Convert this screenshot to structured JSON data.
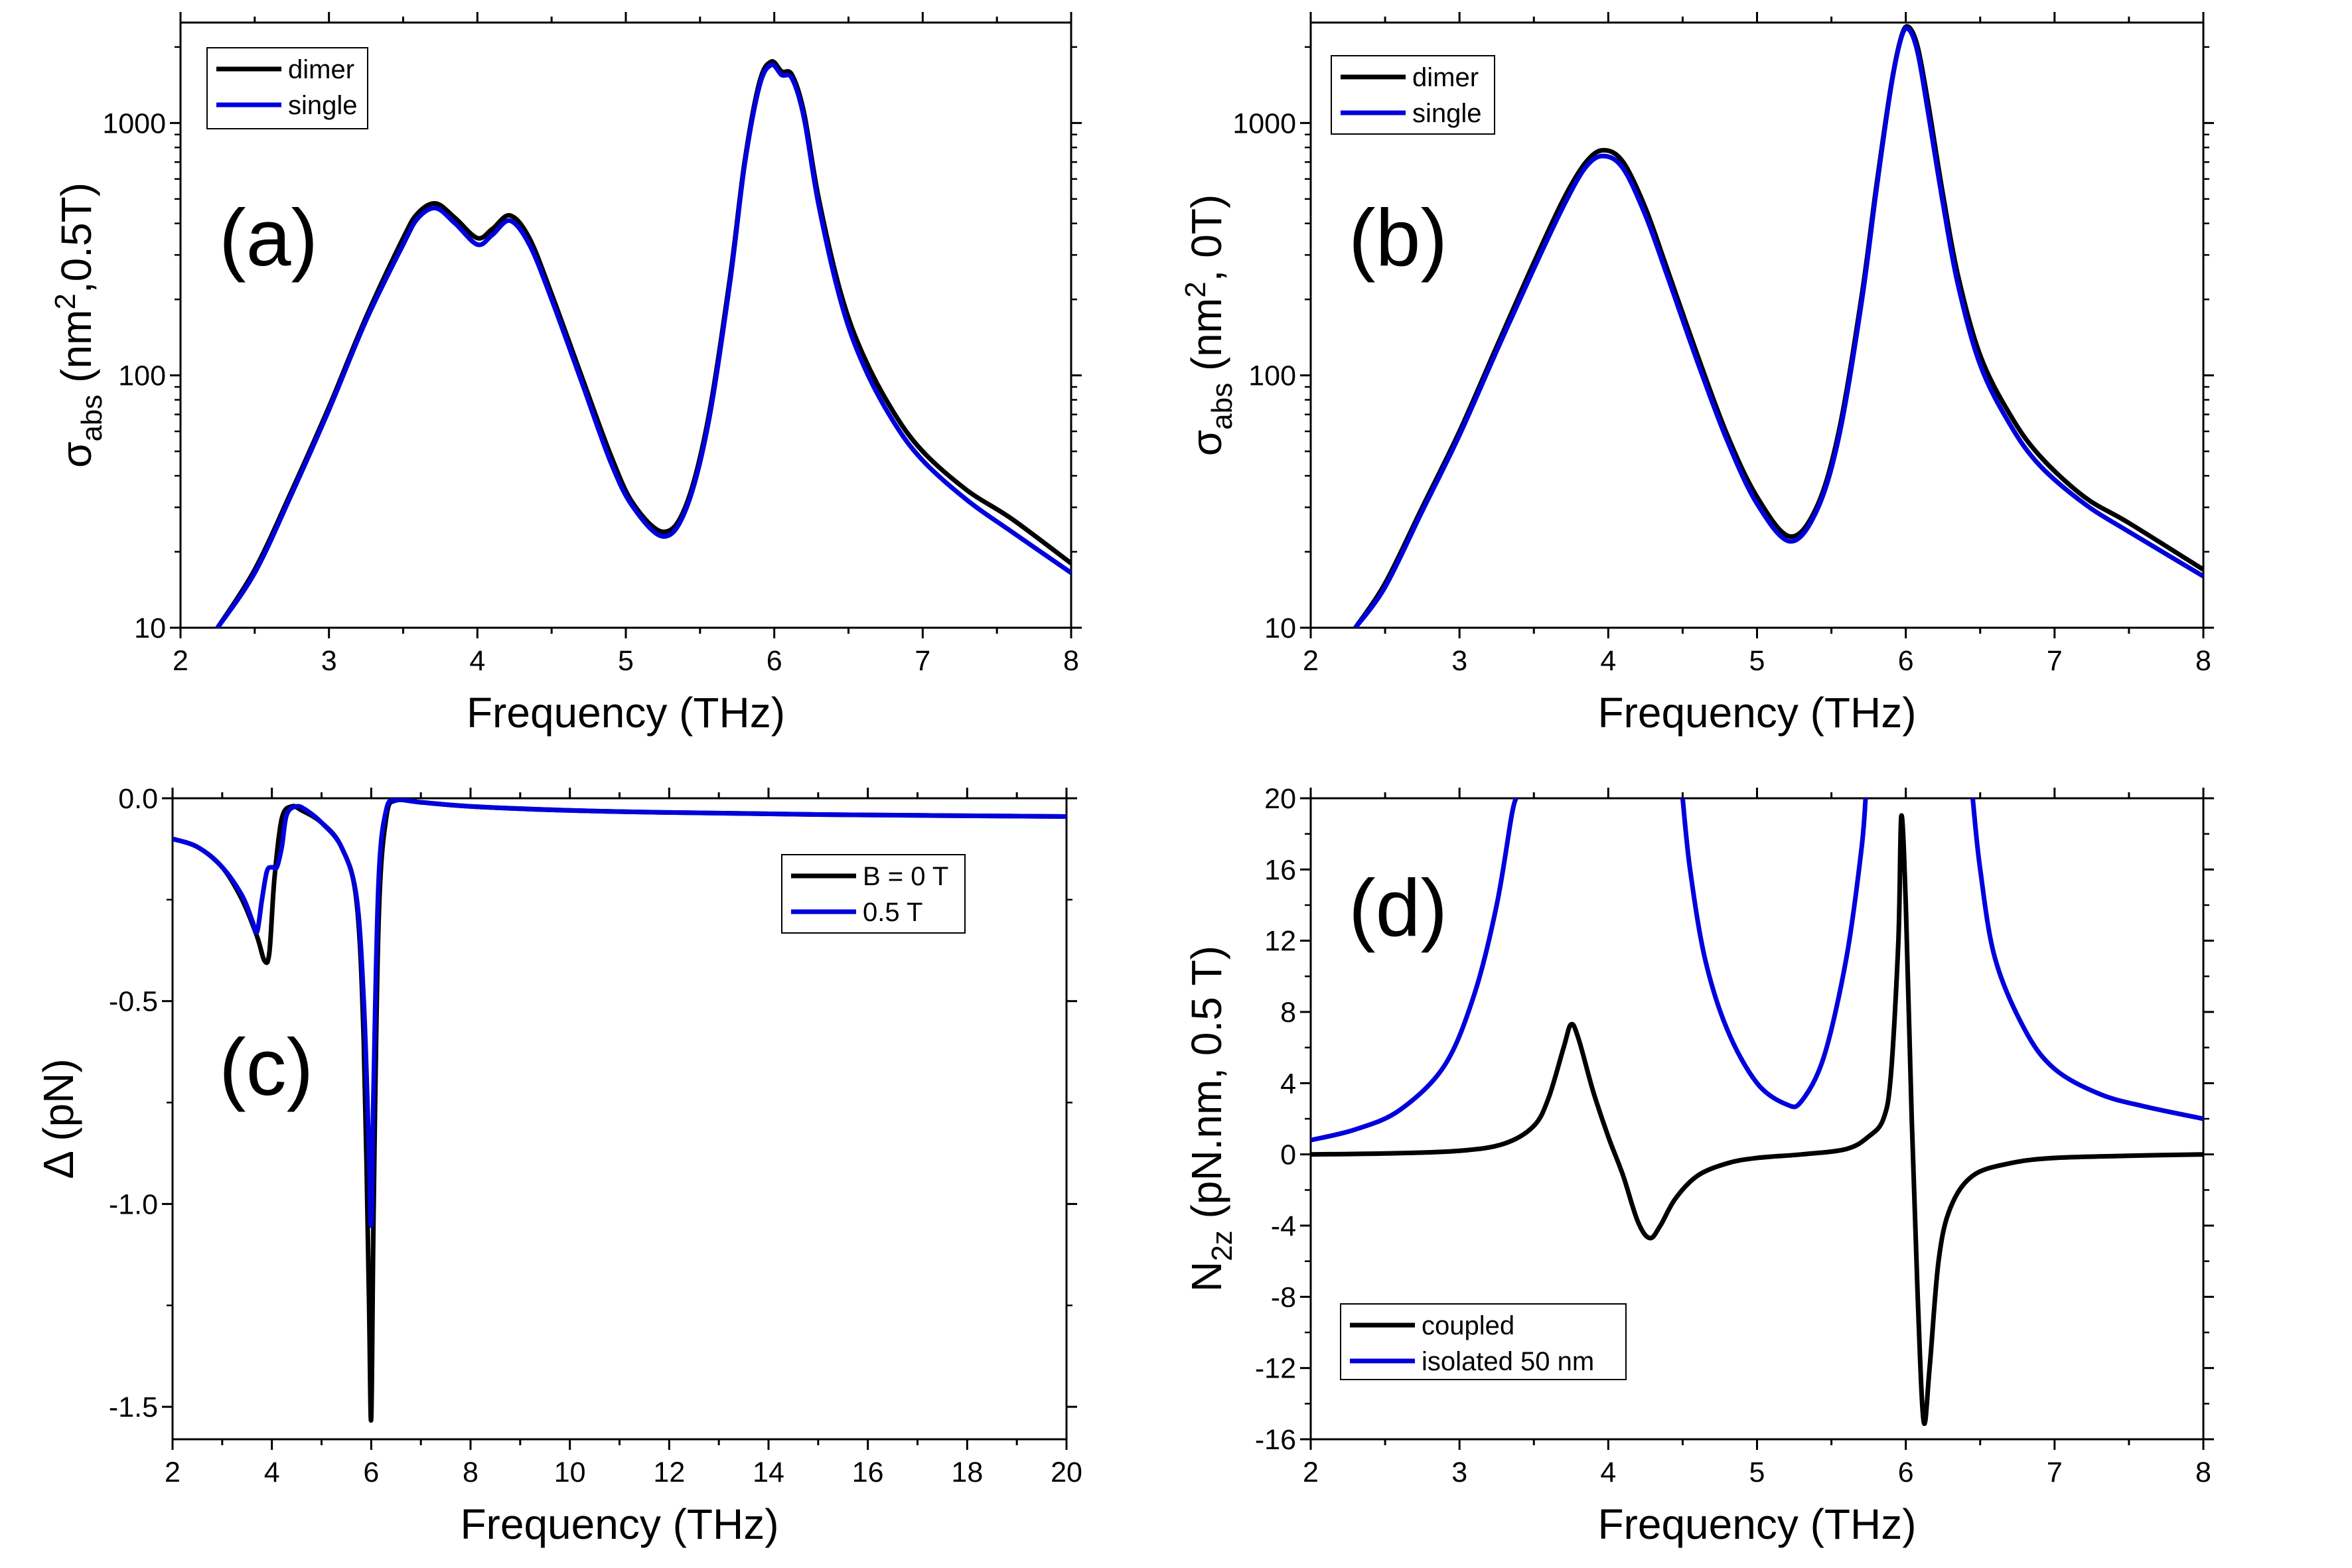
{
  "chart_data": [
    {
      "panel": "(a)",
      "type": "line",
      "xlabel": "Frequency (THz)",
      "ylabel": {
        "base": "σ",
        "sub": "abs",
        "rest_before": " (nm",
        "sup": "2",
        "rest_after": ",0.5T)"
      },
      "xlim": [
        2,
        8
      ],
      "ylim": [
        10,
        2500
      ],
      "yscale": "log",
      "xticks": [
        2,
        3,
        4,
        5,
        6,
        7,
        8
      ],
      "yticks": [
        10,
        100,
        1000
      ],
      "ytick_labels": [
        "10",
        "100",
        "1000"
      ],
      "legend": {
        "position": "top-left"
      },
      "series": [
        {
          "name": "dimer",
          "color": "#000000",
          "x": [
            2.25,
            2.5,
            2.75,
            3.0,
            3.25,
            3.5,
            3.6,
            3.72,
            3.85,
            4.0,
            4.1,
            4.22,
            4.35,
            4.5,
            4.7,
            4.9,
            5.05,
            5.25,
            5.4,
            5.55,
            5.7,
            5.8,
            5.9,
            5.98,
            6.05,
            6.12,
            6.2,
            6.3,
            6.45,
            6.6,
            6.8,
            7.0,
            7.3,
            7.6,
            8.0
          ],
          "y": [
            10,
            17,
            35,
            75,
            170,
            350,
            440,
            480,
            420,
            350,
            380,
            430,
            350,
            210,
            100,
            48,
            31,
            24,
            30,
            65,
            240,
            700,
            1450,
            1750,
            1600,
            1550,
            1100,
            500,
            210,
            120,
            72,
            50,
            35,
            27,
            18
          ]
        },
        {
          "name": "single",
          "color": "#0000dd",
          "x": [
            2.25,
            2.5,
            2.75,
            3.0,
            3.25,
            3.5,
            3.6,
            3.72,
            3.85,
            4.0,
            4.1,
            4.22,
            4.35,
            4.5,
            4.7,
            4.9,
            5.05,
            5.25,
            5.4,
            5.55,
            5.7,
            5.8,
            5.9,
            5.98,
            6.05,
            6.12,
            6.2,
            6.3,
            6.45,
            6.6,
            6.8,
            7.0,
            7.3,
            7.6,
            8.0
          ],
          "y": [
            10,
            16.5,
            34,
            73,
            165,
            330,
            420,
            460,
            400,
            330,
            360,
            410,
            330,
            200,
            95,
            45,
            30,
            23,
            29,
            62,
            230,
            680,
            1400,
            1700,
            1550,
            1500,
            1050,
            470,
            195,
            110,
            66,
            46,
            32,
            24,
            16.5
          ]
        }
      ]
    },
    {
      "panel": "(b)",
      "type": "line",
      "xlabel": "Frequency (THz)",
      "ylabel": {
        "base": "σ",
        "sub": "abs",
        "rest_before": " (nm",
        "sup": "2",
        "rest_after": ", 0T)"
      },
      "xlim": [
        2,
        8
      ],
      "ylim": [
        10,
        2500
      ],
      "yscale": "log",
      "xticks": [
        2,
        3,
        4,
        5,
        6,
        7,
        8
      ],
      "yticks": [
        10,
        100,
        1000
      ],
      "ytick_labels": [
        "10",
        "100",
        "1000"
      ],
      "legend": {
        "position": "top-left"
      },
      "series": [
        {
          "name": "dimer",
          "color": "#000000",
          "x": [
            2.3,
            2.5,
            2.75,
            3.0,
            3.25,
            3.5,
            3.7,
            3.85,
            3.97,
            4.1,
            4.25,
            4.4,
            4.6,
            4.8,
            5.0,
            5.22,
            5.4,
            5.55,
            5.7,
            5.8,
            5.9,
            5.97,
            6.02,
            6.08,
            6.15,
            6.25,
            6.35,
            6.5,
            6.7,
            6.9,
            7.2,
            7.5,
            8.0
          ],
          "y": [
            10,
            15,
            30,
            60,
            130,
            280,
            500,
            700,
            780,
            700,
            460,
            260,
            120,
            58,
            33,
            23,
            30,
            60,
            200,
            550,
            1400,
            2200,
            2400,
            2000,
            1200,
            520,
            250,
            120,
            70,
            48,
            33,
            26,
            17
          ]
        },
        {
          "name": "single",
          "color": "#0000dd",
          "x": [
            2.3,
            2.5,
            2.75,
            3.0,
            3.25,
            3.5,
            3.7,
            3.85,
            3.97,
            4.1,
            4.25,
            4.4,
            4.6,
            4.8,
            5.0,
            5.22,
            5.4,
            5.55,
            5.7,
            5.8,
            5.9,
            5.97,
            6.02,
            6.08,
            6.15,
            6.25,
            6.35,
            6.5,
            6.7,
            6.9,
            7.2,
            7.5,
            8.0
          ],
          "y": [
            10,
            14.5,
            29,
            58,
            125,
            265,
            470,
            670,
            740,
            660,
            430,
            245,
            113,
            55,
            31,
            22,
            29,
            57,
            190,
            530,
            1380,
            2180,
            2350,
            1900,
            1100,
            480,
            230,
            110,
            64,
            44,
            31,
            24,
            16
          ]
        }
      ]
    },
    {
      "panel": "(c)",
      "type": "line",
      "xlabel": "Frequency (THz)",
      "ylabel": "Δ (pN)",
      "xlim": [
        2,
        20
      ],
      "ylim": [
        -1.58,
        0.0
      ],
      "yscale": "linear",
      "xticks": [
        2,
        4,
        6,
        8,
        10,
        12,
        14,
        16,
        18,
        20
      ],
      "yticks": [
        -1.5,
        -1.0,
        -0.5,
        0.0
      ],
      "ytick_labels": [
        "-1.5",
        "-1.0",
        "-0.5",
        "0.0"
      ],
      "legend": {
        "position": "upper-right"
      },
      "series": [
        {
          "name": "B = 0 T",
          "color": "#000000",
          "x": [
            2.0,
            2.5,
            3.0,
            3.4,
            3.7,
            3.85,
            3.95,
            4.05,
            4.2,
            4.4,
            4.6,
            5.0,
            5.4,
            5.7,
            5.85,
            5.95,
            6.0,
            6.05,
            6.15,
            6.3,
            6.5,
            7.0,
            8.0,
            10.0,
            12.0,
            15.0,
            20.0
          ],
          "y": [
            -0.1,
            -0.12,
            -0.17,
            -0.25,
            -0.34,
            -0.4,
            -0.38,
            -0.2,
            -0.05,
            -0.02,
            -0.03,
            -0.06,
            -0.12,
            -0.25,
            -0.6,
            -1.2,
            -1.53,
            -1.0,
            -0.3,
            -0.05,
            -0.005,
            -0.01,
            -0.02,
            -0.03,
            -0.035,
            -0.04,
            -0.045
          ]
        },
        {
          "name": "0.5 T",
          "color": "#0000dd",
          "x": [
            2.0,
            2.5,
            3.0,
            3.4,
            3.6,
            3.7,
            3.8,
            3.9,
            4.0,
            4.1,
            4.2,
            4.3,
            4.5,
            4.7,
            5.0,
            5.4,
            5.7,
            5.85,
            5.95,
            6.0,
            6.05,
            6.15,
            6.3,
            6.5,
            7.0,
            8.0,
            10.0,
            12.0,
            15.0,
            20.0
          ],
          "y": [
            -0.1,
            -0.12,
            -0.17,
            -0.24,
            -0.3,
            -0.33,
            -0.25,
            -0.18,
            -0.17,
            -0.17,
            -0.12,
            -0.04,
            -0.02,
            -0.03,
            -0.06,
            -0.12,
            -0.24,
            -0.5,
            -0.85,
            -1.05,
            -0.7,
            -0.2,
            -0.03,
            -0.005,
            -0.01,
            -0.02,
            -0.03,
            -0.035,
            -0.04,
            -0.045
          ]
        }
      ]
    },
    {
      "panel": "(d)",
      "type": "line",
      "xlabel": "Frequency (THz)",
      "ylabel": {
        "base": "N",
        "sub": "2z",
        "rest_before": " (pN.nm, 0.5 T)",
        "sup": "",
        "rest_after": ""
      },
      "xlim": [
        2,
        8
      ],
      "ylim": [
        -16,
        20
      ],
      "yscale": "linear",
      "xticks": [
        2,
        3,
        4,
        5,
        6,
        7,
        8
      ],
      "yticks": [
        -16,
        -12,
        -8,
        -4,
        0,
        4,
        8,
        12,
        16,
        20
      ],
      "ytick_labels": [
        "-16",
        "-12",
        "-8",
        "-4",
        "0",
        "4",
        "8",
        "12",
        "16",
        "20"
      ],
      "legend": {
        "position": "bottom-left"
      },
      "series": [
        {
          "name": "coupled",
          "color": "#000000",
          "x": [
            2.0,
            2.5,
            3.0,
            3.3,
            3.5,
            3.6,
            3.7,
            3.75,
            3.8,
            3.9,
            4.0,
            4.1,
            4.2,
            4.28,
            4.35,
            4.45,
            4.6,
            4.8,
            5.0,
            5.3,
            5.6,
            5.75,
            5.85,
            5.9,
            5.95,
            5.97,
            6.0,
            6.04,
            6.08,
            6.12,
            6.16,
            6.22,
            6.3,
            6.45,
            6.7,
            7.0,
            7.5,
            8.0
          ],
          "y": [
            0.0,
            0.05,
            0.2,
            0.6,
            1.6,
            3.2,
            6.0,
            7.3,
            6.5,
            3.5,
            1.0,
            -1.2,
            -3.8,
            -4.7,
            -4.0,
            -2.5,
            -1.2,
            -0.5,
            -0.2,
            0.0,
            0.3,
            1.0,
            2.0,
            4.5,
            12.0,
            19.0,
            14.0,
            2.0,
            -8.0,
            -15.0,
            -12.0,
            -6.0,
            -3.0,
            -1.2,
            -0.5,
            -0.2,
            -0.08,
            0.0
          ]
        },
        {
          "name": "isolated 50 nm",
          "color": "#0000dd",
          "x": [
            2.0,
            2.3,
            2.6,
            2.9,
            3.1,
            3.25,
            3.35,
            3.38,
            null,
            4.5,
            4.55,
            4.65,
            4.8,
            5.0,
            5.2,
            5.3,
            5.45,
            5.6,
            5.7,
            5.73,
            null,
            6.45,
            6.5,
            6.6,
            6.8,
            7.0,
            7.3,
            7.6,
            8.0
          ],
          "y": [
            0.8,
            1.4,
            2.5,
            5.0,
            9.0,
            14.0,
            19.0,
            20.0,
            null,
            20.0,
            16.0,
            11.0,
            7.0,
            4.0,
            2.8,
            3.0,
            5.5,
            11.0,
            17.0,
            20.0,
            null,
            20.0,
            16.0,
            11.0,
            7.0,
            4.8,
            3.4,
            2.7,
            2.0
          ]
        }
      ]
    }
  ],
  "panel_labels": [
    "(a)",
    "(b)",
    "(c)",
    "(d)"
  ],
  "legend_labels": {
    "a": [
      "dimer",
      "single"
    ],
    "b": [
      "dimer",
      "single"
    ],
    "c": [
      "B = 0 T",
      "0.5 T"
    ],
    "d": [
      "coupled",
      "isolated 50 nm"
    ]
  },
  "colors": {
    "dimer": "#000000",
    "single": "#0000dd",
    "axis": "#000000",
    "background": "#ffffff"
  }
}
